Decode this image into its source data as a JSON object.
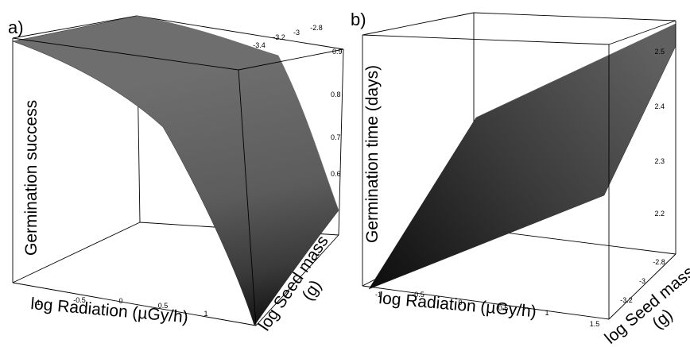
{
  "chart_data": [
    {
      "panel_label": "a)",
      "type": "surface3d",
      "xlabel": "log Radiation (µGy/h)",
      "ylabel": "log Seed mass (g)",
      "zlabel": "Germination success",
      "xticks": [
        "-1",
        "-0.5",
        "0",
        "0.5",
        "1"
      ],
      "yticks": [
        "-3.4",
        "-3.2",
        "-3",
        "-2.8"
      ],
      "zticks": [
        "0.6",
        "0.7",
        "0.8",
        "0.9"
      ],
      "xlim": [
        -1.3,
        1.5
      ],
      "ylim": [
        -3.5,
        -2.7
      ],
      "zlim": [
        0.5,
        0.95
      ],
      "grid": false,
      "surface": {
        "x": [
          -1.3,
          1.5
        ],
        "y": [
          -3.5,
          -2.7
        ],
        "z": [
          [
            0.93,
            0.93
          ],
          [
            0.52,
            0.6
          ]
        ]
      },
      "color": "#5a5a5a"
    },
    {
      "panel_label": "b)",
      "type": "surface3d",
      "xlabel": "log Radiation (µGy/h)",
      "ylabel": "log Seed mass (g)",
      "zlabel": "Germination time (days)",
      "xticks": [
        "-1",
        "-0.5",
        "0",
        "0.5",
        "1",
        "1.5"
      ],
      "yticks": [
        "-3.2",
        "-3",
        "-2.8"
      ],
      "zticks": [
        "2.2",
        "2.3",
        "2.4",
        "2.5"
      ],
      "xlim": [
        -1.2,
        1.6
      ],
      "ylim": [
        -3.4,
        -2.7
      ],
      "zlim": [
        2.1,
        2.53
      ],
      "grid": false,
      "surface": {
        "x": [
          -1.2,
          1.6
        ],
        "y": [
          -3.4,
          -2.7
        ],
        "z": [
          [
            2.1,
            2.41
          ],
          [
            2.23,
            2.53
          ]
        ]
      },
      "color": "#4a4a4a"
    }
  ]
}
